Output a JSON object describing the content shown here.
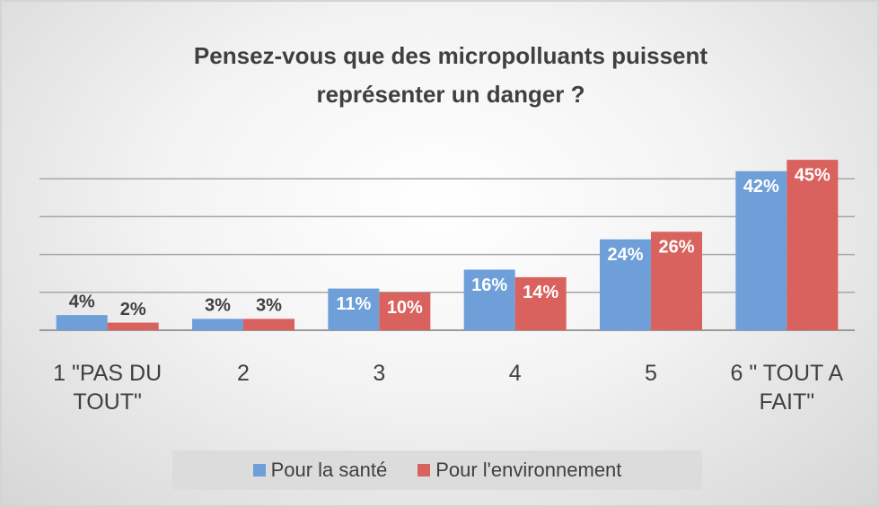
{
  "chart_data": {
    "type": "bar",
    "title": [
      "Pensez-vous que des micropolluants puissent",
      "représenter un danger ?"
    ],
    "categories": [
      "1 \"PAS DU TOUT\"",
      "2",
      "3",
      "4",
      "5",
      "6 \" TOUT A FAIT\""
    ],
    "series": [
      {
        "name": "Pour la santé",
        "color": "#6f9fd8",
        "values": [
          4,
          3,
          11,
          16,
          24,
          42
        ],
        "value_labels": [
          "4%",
          "3%",
          "11%",
          "16%",
          "24%",
          "42%"
        ]
      },
      {
        "name": "Pour l'environnement",
        "color": "#d9625f",
        "values": [
          2,
          3,
          10,
          14,
          26,
          45
        ],
        "value_labels": [
          "2%",
          "3%",
          "10%",
          "14%",
          "26%",
          "45%"
        ]
      }
    ],
    "ylim": [
      0,
      50
    ],
    "yticks": [
      0,
      10,
      20,
      30,
      40
    ],
    "grid": true,
    "legend": "bottom"
  }
}
